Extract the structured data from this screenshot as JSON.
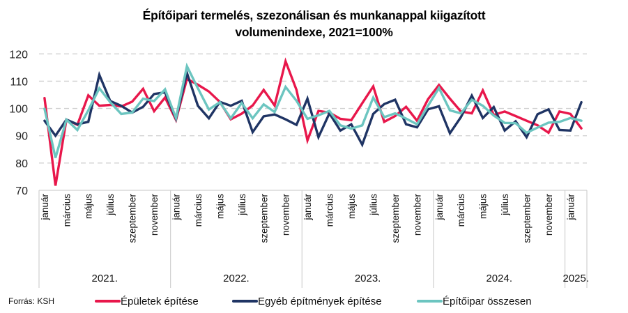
{
  "chart_data": {
    "type": "line",
    "title_lines": [
      "Építőipari termelés, szezonálisan és munkanappal kiigazított",
      "volumenindexe, 2021=100%"
    ],
    "xlabel": "",
    "ylabel": "",
    "ylim": [
      70,
      120
    ],
    "yticks": [
      70,
      80,
      90,
      100,
      110,
      120
    ],
    "grid": "horizontal-dashed",
    "legend_position": "bottom",
    "years": [
      {
        "label": "2021.",
        "months": 12
      },
      {
        "label": "2022.",
        "months": 12
      },
      {
        "label": "2023.",
        "months": 12
      },
      {
        "label": "2024.",
        "months": 12
      },
      {
        "label": "2025.",
        "months": 2
      }
    ],
    "month_tick_labels": [
      "január",
      "március",
      "május",
      "július",
      "szeptember",
      "november"
    ],
    "x": [
      "2021-01",
      "2021-02",
      "2021-03",
      "2021-04",
      "2021-05",
      "2021-06",
      "2021-07",
      "2021-08",
      "2021-09",
      "2021-10",
      "2021-11",
      "2021-12",
      "2022-01",
      "2022-02",
      "2022-03",
      "2022-04",
      "2022-05",
      "2022-06",
      "2022-07",
      "2022-08",
      "2022-09",
      "2022-10",
      "2022-11",
      "2022-12",
      "2023-01",
      "2023-02",
      "2023-03",
      "2023-04",
      "2023-05",
      "2023-06",
      "2023-07",
      "2023-08",
      "2023-09",
      "2023-10",
      "2023-11",
      "2023-12",
      "2024-01",
      "2024-02",
      "2024-03",
      "2024-04",
      "2024-05",
      "2024-06",
      "2024-07",
      "2024-08",
      "2024-09",
      "2024-10",
      "2024-11",
      "2024-12",
      "2025-01",
      "2025-02"
    ],
    "series": [
      {
        "name": "Épületek építése",
        "color": "#E8174B",
        "values": [
          103.8,
          71.7,
          95.9,
          94.0,
          104.8,
          101.0,
          101.3,
          100.7,
          102.5,
          107.2,
          99.0,
          104.0,
          95.8,
          110.8,
          108.7,
          106.2,
          102.4,
          96.0,
          98.1,
          101.1,
          106.8,
          101.1,
          117.3,
          106.8,
          88.3,
          99.1,
          98.5,
          96.2,
          95.7,
          101.9,
          108.1,
          95.1,
          97.2,
          100.6,
          95.5,
          103.4,
          108.6,
          103.6,
          98.9,
          98.2,
          106.6,
          97.6,
          98.9,
          97.2,
          95.5,
          93.8,
          91.1,
          98.9,
          98.0,
          92.7
        ]
      },
      {
        "name": "Egyéb építmények építése",
        "color": "#1F3464",
        "values": [
          95.5,
          90.0,
          95.9,
          94.2,
          95.1,
          112.3,
          102.7,
          101.0,
          98.5,
          100.6,
          105.3,
          105.9,
          96.2,
          113.0,
          101.0,
          96.4,
          102.4,
          101.0,
          102.8,
          91.3,
          97.1,
          97.8,
          96.0,
          94.0,
          103.6,
          89.5,
          98.2,
          91.9,
          94.2,
          86.7,
          98.0,
          101.6,
          103.2,
          94.2,
          93.1,
          99.7,
          100.8,
          90.9,
          96.8,
          104.7,
          96.5,
          100.5,
          91.9,
          95.3,
          89.5,
          97.9,
          99.7,
          92.1,
          91.9,
          102.3
        ]
      },
      {
        "name": "Építőipar összesen",
        "color": "#6CC5C0",
        "values": [
          99.9,
          81.9,
          95.9,
          92.1,
          99.3,
          107.4,
          102.3,
          98.0,
          98.5,
          103.6,
          102.7,
          107.0,
          96.5,
          115.5,
          107.4,
          99.6,
          102.3,
          96.4,
          102.0,
          96.4,
          101.5,
          98.7,
          107.9,
          102.8,
          96.2,
          97.5,
          99.1,
          93.8,
          92.6,
          93.8,
          104.0,
          96.8,
          98.2,
          96.3,
          94.2,
          101.0,
          107.5,
          99.3,
          98.2,
          103.2,
          101.0,
          97.4,
          94.7,
          94.6,
          91.1,
          93.0,
          94.8,
          95.1,
          96.5,
          95.5
        ]
      }
    ]
  },
  "footer": {
    "source": "Forrás: KSH"
  }
}
